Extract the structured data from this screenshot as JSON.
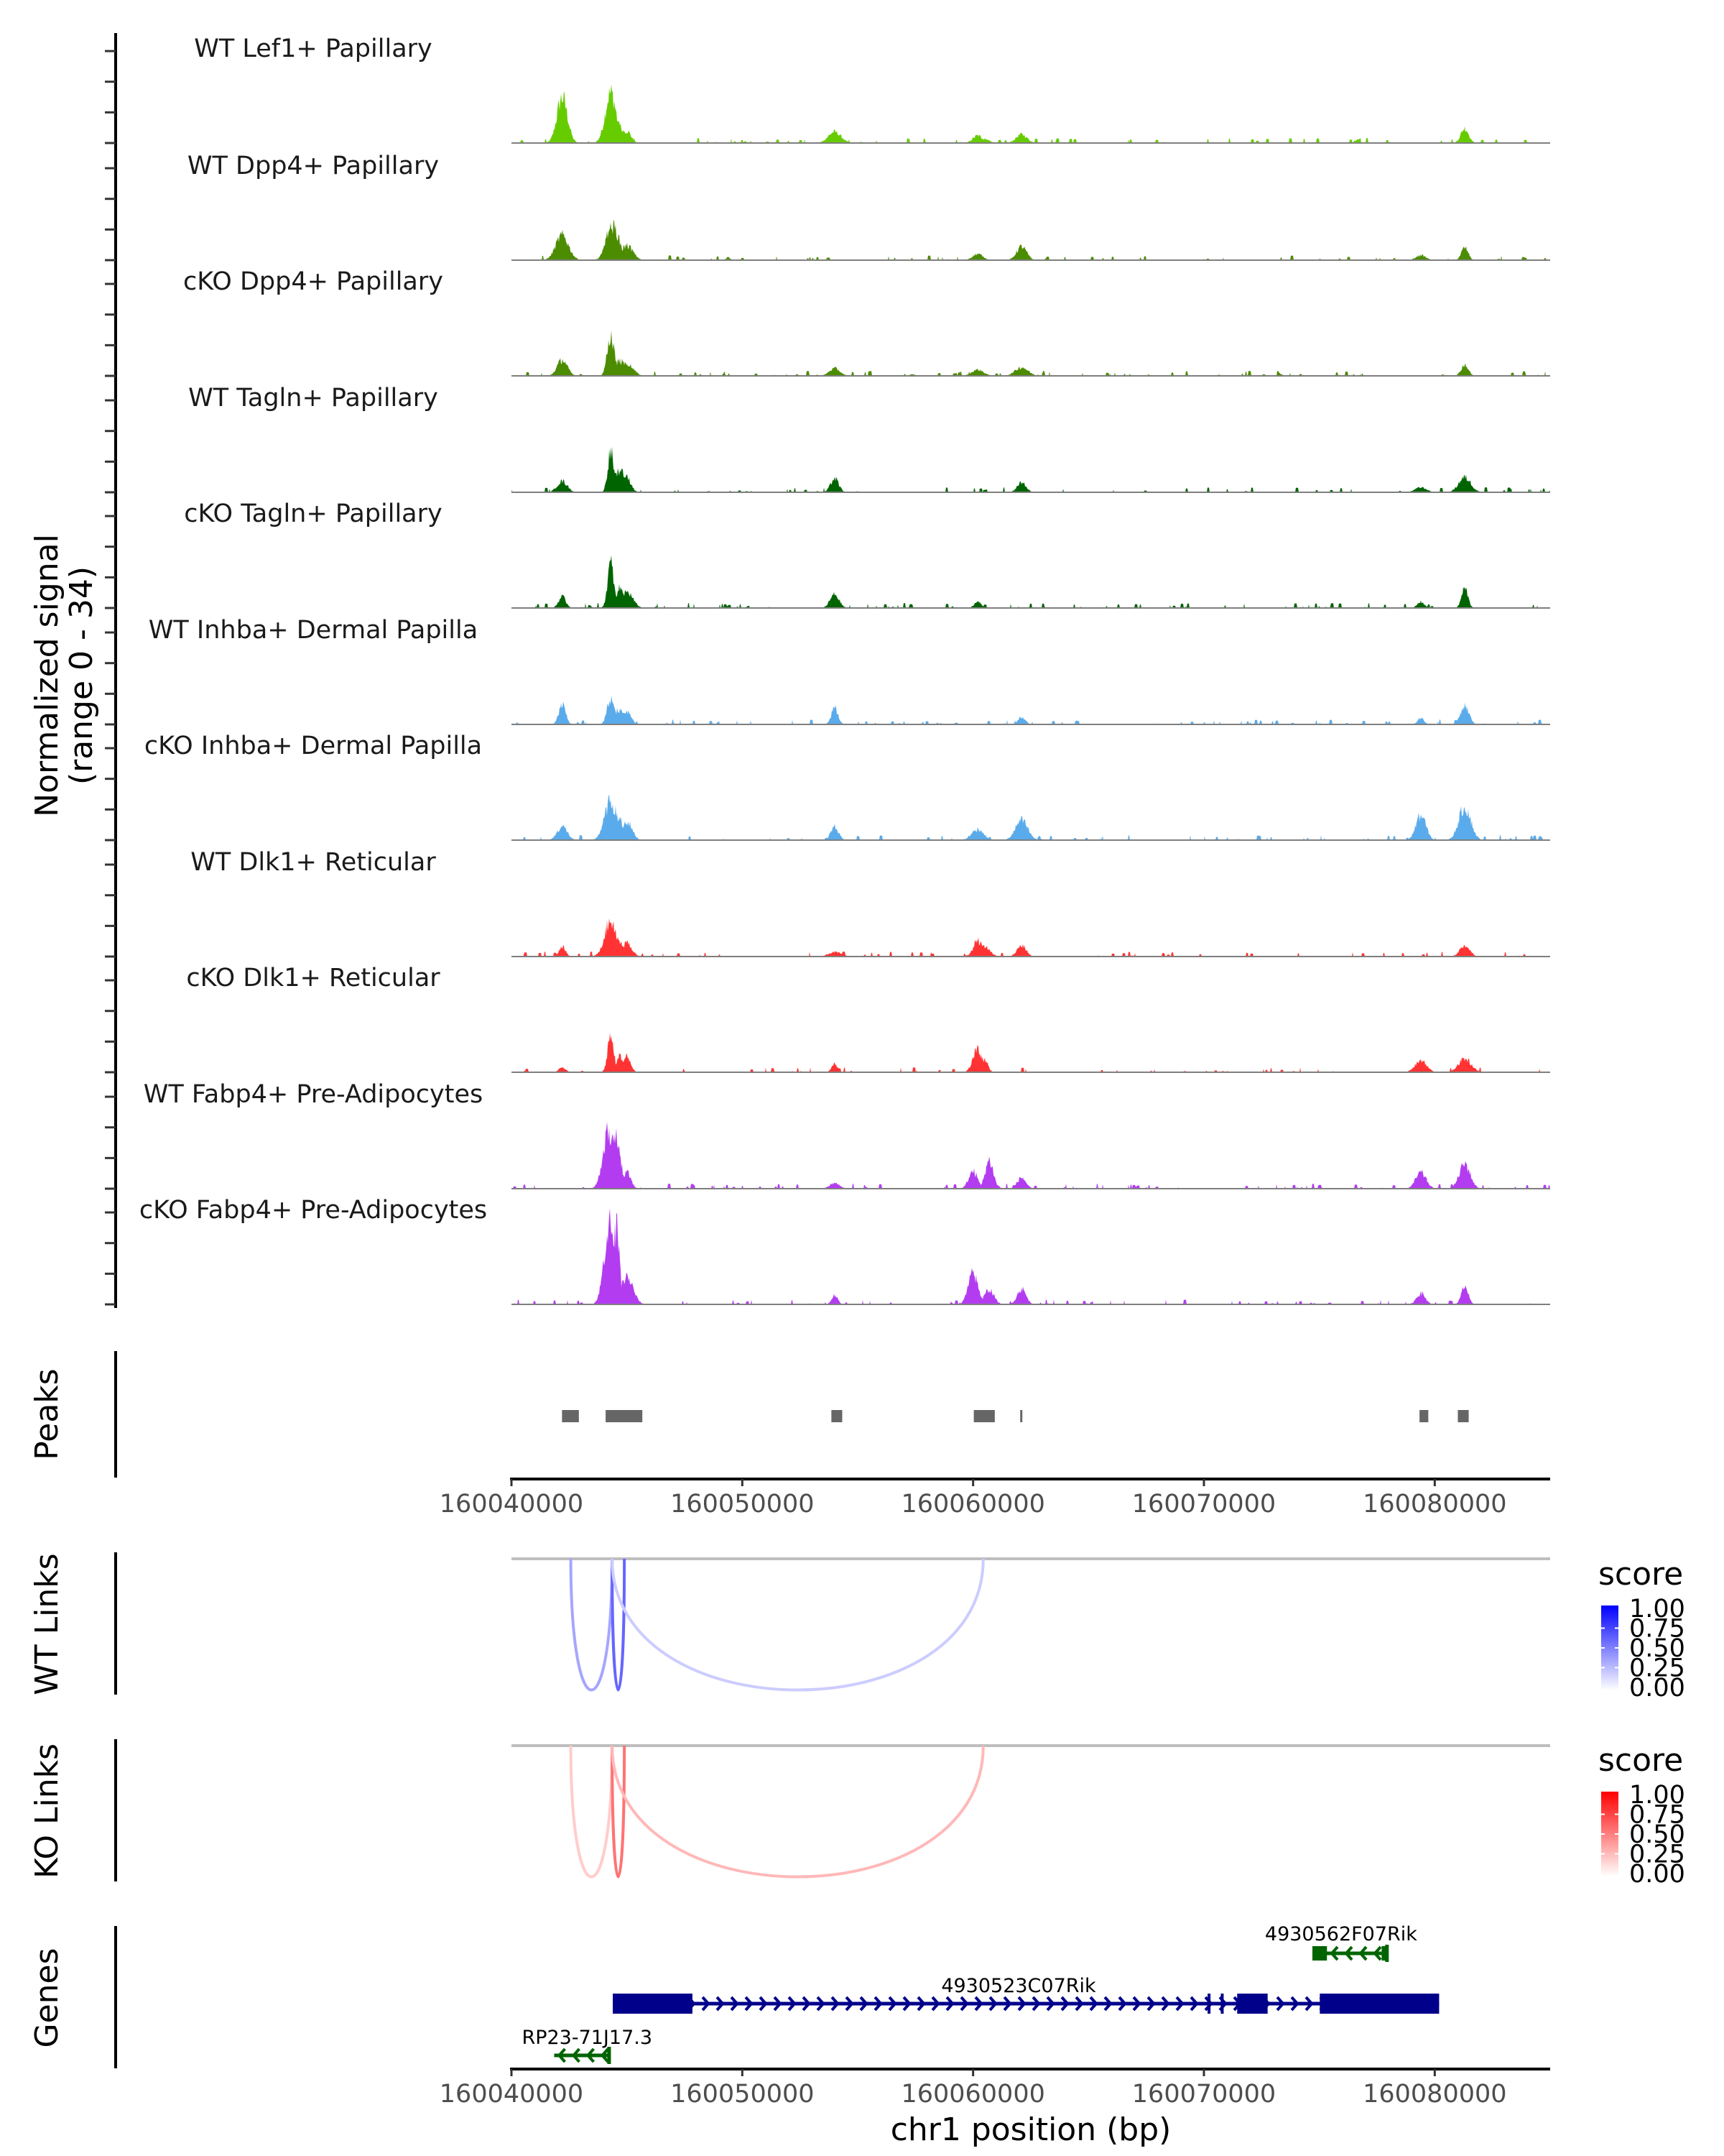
{
  "chart_data": {
    "type": "area",
    "title": "",
    "xlabel": "chr1 position (bp)",
    "ylabel": "Normalized signal\n(range 0 - 34)",
    "ylabel_lines": [
      "Normalized signal",
      "(range 0 - 34)"
    ],
    "ylim": [
      0,
      34
    ],
    "xlim": [
      160040000,
      160085000
    ],
    "x_ticks": [
      160040000,
      160050000,
      160060000,
      160070000,
      160080000
    ],
    "x_tick_labels": [
      "160040000",
      "160050000",
      "160060000",
      "160070000",
      "160080000"
    ],
    "grid": false,
    "series": [
      {
        "name": "WT Lef1+ Papillary",
        "color": "#66CC00",
        "peaks": [
          [
            160042200,
            18.5
          ],
          [
            160044300,
            20.5
          ],
          [
            160044650,
            7
          ],
          [
            160045000,
            5
          ],
          [
            160054000,
            4.5
          ],
          [
            160060200,
            3
          ],
          [
            160060500,
            1.5
          ],
          [
            160062100,
            3.5
          ],
          [
            160081300,
            6
          ]
        ]
      },
      {
        "name": "WT Dpp4+ Papillary",
        "color": "#4C8C00",
        "peaks": [
          [
            160042200,
            10
          ],
          [
            160044200,
            11
          ],
          [
            160044400,
            13.5
          ],
          [
            160045000,
            6
          ],
          [
            160060200,
            2.5
          ],
          [
            160062100,
            5.5
          ],
          [
            160079400,
            2
          ],
          [
            160081300,
            5
          ]
        ]
      },
      {
        "name": "cKO Dpp4+ Papillary",
        "color": "#4C8C00",
        "peaks": [
          [
            160042200,
            6.5
          ],
          [
            160044300,
            16.5
          ],
          [
            160044700,
            6
          ],
          [
            160045000,
            5
          ],
          [
            160054000,
            3
          ],
          [
            160060200,
            2.5
          ],
          [
            160062100,
            3.5
          ],
          [
            160081300,
            4.5
          ]
        ]
      },
      {
        "name": "WT Tagln+ Papillary",
        "color": "#006400",
        "peaks": [
          [
            160042200,
            4.5
          ],
          [
            160044300,
            16.5
          ],
          [
            160044700,
            9
          ],
          [
            160045000,
            6
          ],
          [
            160054000,
            5.5
          ],
          [
            160062100,
            4
          ],
          [
            160079400,
            2
          ],
          [
            160081300,
            6
          ]
        ]
      },
      {
        "name": "cKO Tagln+ Papillary",
        "color": "#006400",
        "peaks": [
          [
            160042200,
            4.5
          ],
          [
            160044300,
            18
          ],
          [
            160044700,
            8
          ],
          [
            160045000,
            6.5
          ],
          [
            160054000,
            5.5
          ],
          [
            160060200,
            2.5
          ],
          [
            160079400,
            2.5
          ],
          [
            160081300,
            8
          ]
        ]
      },
      {
        "name": "WT Inhba+ Dermal Papilla",
        "color": "#5AABEB",
        "peaks": [
          [
            160042200,
            8
          ],
          [
            160044300,
            10.5
          ],
          [
            160044700,
            6
          ],
          [
            160045000,
            5.5
          ],
          [
            160054000,
            6.5
          ],
          [
            160062100,
            3
          ],
          [
            160079400,
            2.5
          ],
          [
            160081300,
            7.5
          ]
        ]
      },
      {
        "name": "cKO Inhba+ Dermal Papilla",
        "color": "#5AABEB",
        "peaks": [
          [
            160042200,
            5.5
          ],
          [
            160044300,
            15.5
          ],
          [
            160044700,
            8
          ],
          [
            160045000,
            7.5
          ],
          [
            160054000,
            5.5
          ],
          [
            160060200,
            4.5
          ],
          [
            160062100,
            8
          ],
          [
            160079400,
            10
          ],
          [
            160081300,
            13.5
          ]
        ]
      },
      {
        "name": "WT Dlk1+ Reticular",
        "color": "#FF3333",
        "peaks": [
          [
            160042200,
            4
          ],
          [
            160044300,
            14.5
          ],
          [
            160044700,
            6
          ],
          [
            160045000,
            5.5
          ],
          [
            160054000,
            1.8
          ],
          [
            160060200,
            6.5
          ],
          [
            160060500,
            4
          ],
          [
            160062100,
            4.5
          ],
          [
            160081300,
            4.5
          ]
        ]
      },
      {
        "name": "cKO Dlk1+ Reticular",
        "color": "#FF3333",
        "peaks": [
          [
            160042200,
            1.8
          ],
          [
            160044300,
            15
          ],
          [
            160044700,
            6.5
          ],
          [
            160045000,
            6.3
          ],
          [
            160054000,
            3.6
          ],
          [
            160060200,
            9
          ],
          [
            160060500,
            5
          ],
          [
            160079400,
            5
          ],
          [
            160081300,
            5.5
          ]
        ]
      },
      {
        "name": "WT Fabp4+ Pre-Adipocytes",
        "color": "#B33CF0",
        "peaks": [
          [
            160044200,
            23
          ],
          [
            160044500,
            22
          ],
          [
            160045000,
            6.5
          ],
          [
            160054000,
            2.2
          ],
          [
            160060000,
            7
          ],
          [
            160060700,
            11.5
          ],
          [
            160062100,
            4.5
          ],
          [
            160079400,
            6.5
          ],
          [
            160081300,
            10
          ]
        ]
      },
      {
        "name": "cKO Fabp4+ Pre-Adipocytes",
        "color": "#B33CF0",
        "peaks": [
          [
            160044250,
            32.5
          ],
          [
            160044550,
            31
          ],
          [
            160045000,
            11
          ],
          [
            160054000,
            3.6
          ],
          [
            160060000,
            12.5
          ],
          [
            160060700,
            6
          ],
          [
            160062100,
            6.3
          ],
          [
            160079400,
            4.5
          ],
          [
            160081300,
            7.5
          ]
        ]
      }
    ],
    "peaks_track": {
      "label": "Peaks",
      "color": "#666666",
      "regions": [
        [
          160042190,
          160042920
        ],
        [
          160044080,
          160045670
        ],
        [
          160053860,
          160054330
        ],
        [
          160060030,
          160060940
        ],
        [
          160062040,
          160062130
        ],
        [
          160079340,
          160079720
        ],
        [
          160081000,
          160081470
        ]
      ]
    },
    "links": [
      {
        "label": "WT Links",
        "legend_title": "score",
        "low_color": "#FFFFFF",
        "high_color": "#0000FF",
        "arcs": [
          {
            "start": 160042570,
            "end": 160044360,
            "score": 0.35
          },
          {
            "start": 160044360,
            "end": 160044890,
            "score": 0.6
          },
          {
            "start": 160044360,
            "end": 160060440,
            "score": 0.2
          }
        ]
      },
      {
        "label": "KO Links",
        "legend_title": "score",
        "low_color": "#FFFFFF",
        "high_color": "#FF0000",
        "arcs": [
          {
            "start": 160042570,
            "end": 160044360,
            "score": 0.2
          },
          {
            "start": 160044360,
            "end": 160044890,
            "score": 0.55
          },
          {
            "start": 160044360,
            "end": 160060440,
            "score": 0.28
          }
        ]
      }
    ],
    "legend_ticks": [
      "1.00",
      "0.75",
      "0.50",
      "0.25",
      "0.00"
    ],
    "genes_track": {
      "label": "Genes",
      "genes": [
        {
          "name": "4930562F07Rik",
          "strand": "-",
          "color": "#006400",
          "row": 0,
          "start": 160074700,
          "end": 160077930,
          "exons": [
            [
              160074700,
              160075330
            ],
            [
              160077700,
              160077930
            ]
          ]
        },
        {
          "name": "4930523C07Rik",
          "strand": "+",
          "color": "#00008B",
          "row": 1,
          "start": 160044390,
          "end": 160080190,
          "exons": [
            [
              160044390,
              160044420
            ],
            [
              160044420,
              160047840
            ],
            [
              160070160,
              160070200
            ],
            [
              160070730,
              160070770
            ],
            [
              160071440,
              160072760
            ],
            [
              160075020,
              160080190
            ]
          ]
        },
        {
          "name": "RP23-71J17.3",
          "strand": "-",
          "color": "#006400",
          "row": 2,
          "start": 160041850,
          "end": 160044230,
          "exons": [
            [
              160044180,
              160044230
            ]
          ]
        }
      ]
    }
  }
}
